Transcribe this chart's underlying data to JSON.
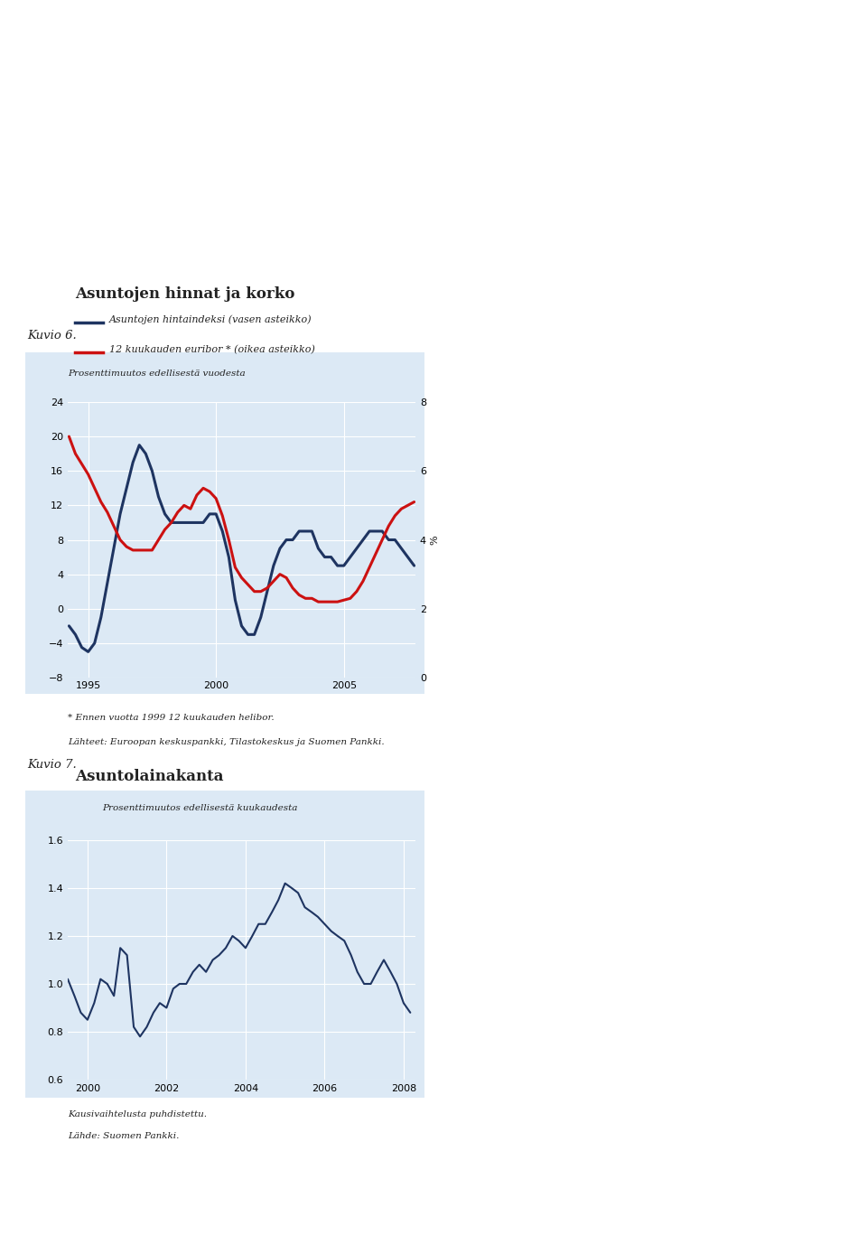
{
  "page_bg": "#ffffff",
  "text_color": "#222222",
  "chart_bg": "#dce9f5",
  "color_blue": "#1e3461",
  "color_red": "#cc1111",
  "fig1": {
    "title": "Asuntojen hinnat ja korko",
    "legend1": "Asuntojen hintaindeksi (vasen asteikko)",
    "legend2": "12 kuukauden euribor * (oikea asteikko)",
    "ylabel_left": "Prosenttimuutos edellisestä vuodesta",
    "ylabel_right": "%",
    "footnote1": "* Ennen vuotta 1999 12 kuukauden helibor.",
    "footnote2": "Lähteet: Euroopan keskuspankki, Tilastokeskus ja Suomen Pankki.",
    "xticks": [
      1995,
      2000,
      2005
    ],
    "xlim": [
      1994.2,
      2007.8
    ],
    "ylim_left": [
      -8,
      24
    ],
    "yticks_left": [
      -8,
      -4,
      0,
      4,
      8,
      12,
      16,
      20,
      24
    ],
    "ylim_right": [
      0,
      8
    ],
    "yticks_right": [
      0,
      2,
      4,
      6,
      8
    ],
    "price_index_x": [
      1994.25,
      1994.5,
      1994.75,
      1995.0,
      1995.25,
      1995.5,
      1995.75,
      1996.0,
      1996.25,
      1996.5,
      1996.75,
      1997.0,
      1997.25,
      1997.5,
      1997.75,
      1998.0,
      1998.25,
      1998.5,
      1998.75,
      1999.0,
      1999.25,
      1999.5,
      1999.75,
      2000.0,
      2000.25,
      2000.5,
      2000.75,
      2001.0,
      2001.25,
      2001.5,
      2001.75,
      2002.0,
      2002.25,
      2002.5,
      2002.75,
      2003.0,
      2003.25,
      2003.5,
      2003.75,
      2004.0,
      2004.25,
      2004.5,
      2004.75,
      2005.0,
      2005.25,
      2005.5,
      2005.75,
      2006.0,
      2006.25,
      2006.5,
      2006.75,
      2007.0,
      2007.25,
      2007.5,
      2007.75
    ],
    "price_index_y": [
      -2,
      -3,
      -4.5,
      -5,
      -4,
      -1,
      3,
      7,
      11,
      14,
      17,
      19,
      18,
      16,
      13,
      11,
      10,
      10,
      10,
      10,
      10,
      10,
      11,
      11,
      9,
      6,
      1,
      -2,
      -3,
      -3,
      -1,
      2,
      5,
      7,
      8,
      8,
      9,
      9,
      9,
      7,
      6,
      6,
      5,
      5,
      6,
      7,
      8,
      9,
      9,
      9,
      8,
      8,
      7,
      6,
      5
    ],
    "euribor_x": [
      1994.25,
      1994.5,
      1994.75,
      1995.0,
      1995.25,
      1995.5,
      1995.75,
      1996.0,
      1996.25,
      1996.5,
      1996.75,
      1997.0,
      1997.25,
      1997.5,
      1997.75,
      1998.0,
      1998.25,
      1998.5,
      1998.75,
      1999.0,
      1999.25,
      1999.5,
      1999.75,
      2000.0,
      2000.25,
      2000.5,
      2000.75,
      2001.0,
      2001.25,
      2001.5,
      2001.75,
      2002.0,
      2002.25,
      2002.5,
      2002.75,
      2003.0,
      2003.25,
      2003.5,
      2003.75,
      2004.0,
      2004.25,
      2004.5,
      2004.75,
      2005.0,
      2005.25,
      2005.5,
      2005.75,
      2006.0,
      2006.25,
      2006.5,
      2006.75,
      2007.0,
      2007.25,
      2007.5,
      2007.75
    ],
    "euribor_y": [
      7.0,
      6.5,
      6.2,
      5.9,
      5.5,
      5.1,
      4.8,
      4.4,
      4.0,
      3.8,
      3.7,
      3.7,
      3.7,
      3.7,
      4.0,
      4.3,
      4.5,
      4.8,
      5.0,
      4.9,
      5.3,
      5.5,
      5.4,
      5.2,
      4.7,
      4.0,
      3.2,
      2.9,
      2.7,
      2.5,
      2.5,
      2.6,
      2.8,
      3.0,
      2.9,
      2.6,
      2.4,
      2.3,
      2.3,
      2.2,
      2.2,
      2.2,
      2.2,
      2.25,
      2.3,
      2.5,
      2.8,
      3.2,
      3.6,
      4.0,
      4.4,
      4.7,
      4.9,
      5.0,
      5.1
    ]
  },
  "fig2": {
    "title": "Asuntolainakanta",
    "ylabel": "Prosenttimuutos edellisestä kuukaudesta",
    "footnote1": "Kausivaihtelusta puhdistettu.",
    "footnote2": "Lähde: Suomen Pankki.",
    "xticks": [
      2000,
      2002,
      2004,
      2006,
      2008
    ],
    "xlim": [
      1999.5,
      2008.3
    ],
    "ylim": [
      0.6,
      1.6
    ],
    "yticks": [
      0.6,
      0.8,
      1.0,
      1.2,
      1.4,
      1.6
    ],
    "loan_x": [
      1999.5,
      1999.67,
      1999.83,
      2000.0,
      2000.17,
      2000.33,
      2000.5,
      2000.67,
      2000.83,
      2001.0,
      2001.17,
      2001.33,
      2001.5,
      2001.67,
      2001.83,
      2002.0,
      2002.17,
      2002.33,
      2002.5,
      2002.67,
      2002.83,
      2003.0,
      2003.17,
      2003.33,
      2003.5,
      2003.67,
      2003.83,
      2004.0,
      2004.17,
      2004.33,
      2004.5,
      2004.67,
      2004.83,
      2005.0,
      2005.17,
      2005.33,
      2005.5,
      2005.67,
      2005.83,
      2006.0,
      2006.17,
      2006.33,
      2006.5,
      2006.67,
      2006.83,
      2007.0,
      2007.17,
      2007.33,
      2007.5,
      2007.67,
      2007.83,
      2008.0,
      2008.17
    ],
    "loan_y": [
      1.02,
      0.95,
      0.88,
      0.85,
      0.92,
      1.02,
      1.0,
      0.95,
      1.15,
      1.12,
      0.82,
      0.78,
      0.82,
      0.88,
      0.92,
      0.9,
      0.98,
      1.0,
      1.0,
      1.05,
      1.08,
      1.05,
      1.1,
      1.12,
      1.15,
      1.2,
      1.18,
      1.15,
      1.2,
      1.25,
      1.25,
      1.3,
      1.35,
      1.42,
      1.4,
      1.38,
      1.32,
      1.3,
      1.28,
      1.25,
      1.22,
      1.2,
      1.18,
      1.12,
      1.05,
      1.0,
      1.0,
      1.05,
      1.1,
      1.05,
      1.0,
      0.92,
      0.88
    ]
  },
  "kuvio6_label": "Kuvio 6.",
  "kuvio7_label": "Kuvio 7."
}
